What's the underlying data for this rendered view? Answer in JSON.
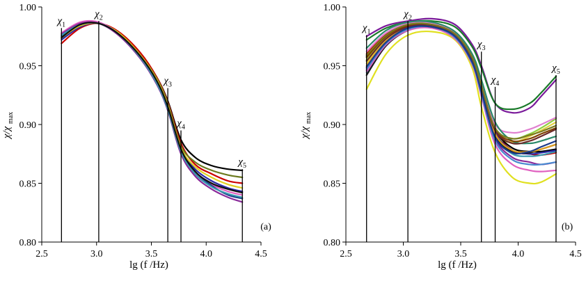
{
  "chart_data": [
    {
      "type": "line",
      "panel": "(a)",
      "xlabel": "lg (f /Hz)",
      "ylabel": "χ/χmax",
      "xlim": [
        2.5,
        4.5
      ],
      "ylim": [
        0.8,
        1.0
      ],
      "xticks": [
        "2.5",
        "3.0",
        "3.5",
        "4.0",
        "4.5"
      ],
      "yticks": [
        "0.80",
        "0.85",
        "0.90",
        "0.95",
        "1.00"
      ],
      "markers": [
        {
          "label": "χ",
          "sub": "1",
          "x": 2.68,
          "top": 0.982
        },
        {
          "label": "χ",
          "sub": "2",
          "x": 3.02,
          "top": 0.988
        },
        {
          "label": "χ",
          "sub": "3",
          "x": 3.65,
          "top": 0.931
        },
        {
          "label": "χ",
          "sub": "4",
          "x": 3.77,
          "top": 0.895
        },
        {
          "label": "χ",
          "sub": "5",
          "x": 4.33,
          "top": 0.862
        }
      ],
      "series": [
        {
          "name": "s1",
          "color": "#000000",
          "x": [
            2.68,
            2.85,
            3.02,
            3.2,
            3.4,
            3.55,
            3.65,
            3.77,
            3.9,
            4.05,
            4.2,
            4.33
          ],
          "values": [
            0.976,
            0.985,
            0.986,
            0.978,
            0.96,
            0.94,
            0.92,
            0.887,
            0.872,
            0.865,
            0.862,
            0.861
          ]
        },
        {
          "name": "s2",
          "color": "#cc0000",
          "x": [
            2.68,
            2.85,
            3.02,
            3.2,
            3.4,
            3.55,
            3.65,
            3.77,
            3.9,
            4.05,
            4.2,
            4.33
          ],
          "values": [
            0.969,
            0.982,
            0.986,
            0.979,
            0.961,
            0.94,
            0.919,
            0.884,
            0.866,
            0.858,
            0.852,
            0.85
          ]
        },
        {
          "name": "s3",
          "color": "#6b7a1e",
          "x": [
            2.68,
            2.85,
            3.02,
            3.2,
            3.4,
            3.55,
            3.65,
            3.77,
            3.9,
            4.05,
            4.2,
            4.33
          ],
          "values": [
            0.973,
            0.984,
            0.986,
            0.978,
            0.959,
            0.939,
            0.918,
            0.882,
            0.868,
            0.861,
            0.857,
            0.855
          ]
        },
        {
          "name": "s4",
          "color": "#2a2aa8",
          "x": [
            2.68,
            2.85,
            3.02,
            3.2,
            3.4,
            3.55,
            3.65,
            3.77,
            3.9,
            4.05,
            4.2,
            4.33
          ],
          "values": [
            0.972,
            0.983,
            0.986,
            0.977,
            0.958,
            0.937,
            0.915,
            0.879,
            0.862,
            0.852,
            0.846,
            0.843
          ]
        },
        {
          "name": "s5",
          "color": "#e0d020",
          "x": [
            2.68,
            2.85,
            3.02,
            3.2,
            3.4,
            3.55,
            3.65,
            3.77,
            3.9,
            4.05,
            4.2,
            4.33
          ],
          "values": [
            0.974,
            0.984,
            0.986,
            0.978,
            0.959,
            0.938,
            0.916,
            0.88,
            0.864,
            0.855,
            0.849,
            0.846
          ]
        },
        {
          "name": "s6",
          "color": "#e060c0",
          "x": [
            2.68,
            2.85,
            3.02,
            3.2,
            3.4,
            3.55,
            3.65,
            3.77,
            3.9,
            4.05,
            4.2,
            4.33
          ],
          "values": [
            0.978,
            0.987,
            0.987,
            0.977,
            0.957,
            0.936,
            0.914,
            0.877,
            0.859,
            0.849,
            0.843,
            0.84
          ]
        },
        {
          "name": "s7",
          "color": "#1a3a8a",
          "x": [
            2.68,
            2.85,
            3.02,
            3.2,
            3.4,
            3.55,
            3.65,
            3.77,
            3.9,
            4.05,
            4.2,
            4.33
          ],
          "values": [
            0.975,
            0.985,
            0.986,
            0.977,
            0.958,
            0.936,
            0.914,
            0.878,
            0.86,
            0.848,
            0.84,
            0.837
          ]
        },
        {
          "name": "s8",
          "color": "#8a2a9a",
          "x": [
            2.68,
            2.85,
            3.02,
            3.2,
            3.4,
            3.55,
            3.65,
            3.77,
            3.9,
            4.05,
            4.2,
            4.33
          ],
          "values": [
            0.977,
            0.986,
            0.986,
            0.976,
            0.956,
            0.934,
            0.912,
            0.875,
            0.856,
            0.845,
            0.838,
            0.834
          ]
        },
        {
          "name": "s9",
          "color": "#3a9ab0",
          "x": [
            2.68,
            2.85,
            3.02,
            3.2,
            3.4,
            3.55,
            3.65,
            3.77,
            3.9,
            4.05,
            4.2,
            4.33
          ],
          "values": [
            0.976,
            0.985,
            0.986,
            0.977,
            0.957,
            0.935,
            0.913,
            0.877,
            0.858,
            0.847,
            0.841,
            0.838
          ]
        },
        {
          "name": "s10",
          "color": "#101010",
          "x": [
            2.68,
            2.85,
            3.02,
            3.2,
            3.4,
            3.55,
            3.65,
            3.77,
            3.9,
            4.05,
            4.2,
            4.33
          ],
          "values": [
            0.974,
            0.985,
            0.986,
            0.977,
            0.958,
            0.937,
            0.915,
            0.879,
            0.86,
            0.85,
            0.845,
            0.842
          ]
        }
      ]
    },
    {
      "type": "line",
      "panel": "(b)",
      "xlabel": "lg (f /Hz)",
      "ylabel": "χ/χmax",
      "xlim": [
        2.5,
        4.5
      ],
      "ylim": [
        0.8,
        1.0
      ],
      "xticks": [
        "2.5",
        "3.0",
        "3.5",
        "4.0",
        "4.5"
      ],
      "yticks": [
        "0.80",
        "0.85",
        "0.90",
        "0.95",
        "1.00"
      ],
      "markers": [
        {
          "label": "χ",
          "sub": "1",
          "x": 2.68,
          "top": 0.976
        },
        {
          "label": "χ",
          "sub": "2",
          "x": 3.04,
          "top": 0.988
        },
        {
          "label": "χ",
          "sub": "3",
          "x": 3.68,
          "top": 0.962
        },
        {
          "label": "χ",
          "sub": "4",
          "x": 3.8,
          "top": 0.932
        },
        {
          "label": "χ",
          "sub": "5",
          "x": 4.33,
          "top": 0.942
        }
      ],
      "series": [
        {
          "name": "s1",
          "color": "#7a1a9a",
          "x": [
            2.68,
            2.85,
            3.04,
            3.25,
            3.45,
            3.6,
            3.68,
            3.8,
            3.95,
            4.1,
            4.2,
            4.33
          ],
          "values": [
            0.975,
            0.984,
            0.988,
            0.99,
            0.985,
            0.968,
            0.95,
            0.918,
            0.91,
            0.914,
            0.924,
            0.938
          ]
        },
        {
          "name": "s2",
          "color": "#1a7a2a",
          "x": [
            2.68,
            2.85,
            3.04,
            3.25,
            3.45,
            3.6,
            3.68,
            3.8,
            3.95,
            4.1,
            4.2,
            4.33
          ],
          "values": [
            0.972,
            0.982,
            0.987,
            0.988,
            0.983,
            0.966,
            0.948,
            0.918,
            0.913,
            0.918,
            0.927,
            0.941
          ]
        },
        {
          "name": "s3",
          "color": "#e0e020",
          "x": [
            2.68,
            2.85,
            3.04,
            3.25,
            3.45,
            3.6,
            3.68,
            3.8,
            3.95,
            4.1,
            4.2,
            4.33
          ],
          "values": [
            0.93,
            0.96,
            0.976,
            0.979,
            0.972,
            0.948,
            0.915,
            0.876,
            0.855,
            0.85,
            0.851,
            0.858
          ]
        },
        {
          "name": "s4",
          "color": "#cc0000",
          "x": [
            2.68,
            2.85,
            3.04,
            3.25,
            3.45,
            3.6,
            3.68,
            3.8,
            3.95,
            4.1,
            4.2,
            4.33
          ],
          "values": [
            0.96,
            0.977,
            0.985,
            0.986,
            0.978,
            0.958,
            0.935,
            0.895,
            0.878,
            0.875,
            0.874,
            0.876
          ]
        },
        {
          "name": "s5",
          "color": "#e0d040",
          "x": [
            2.68,
            2.85,
            3.04,
            3.25,
            3.45,
            3.6,
            3.68,
            3.8,
            3.95,
            4.1,
            4.2,
            4.33
          ],
          "values": [
            0.952,
            0.972,
            0.982,
            0.984,
            0.976,
            0.955,
            0.93,
            0.892,
            0.885,
            0.89,
            0.895,
            0.902
          ]
        },
        {
          "name": "s6",
          "color": "#000000",
          "x": [
            2.68,
            2.85,
            3.04,
            3.25,
            3.45,
            3.6,
            3.68,
            3.8,
            3.95,
            4.1,
            4.2,
            4.33
          ],
          "values": [
            0.958,
            0.976,
            0.985,
            0.985,
            0.977,
            0.957,
            0.934,
            0.896,
            0.88,
            0.877,
            0.877,
            0.879
          ]
        },
        {
          "name": "s7",
          "color": "#3a9ab0",
          "x": [
            2.68,
            2.85,
            3.04,
            3.25,
            3.45,
            3.6,
            3.68,
            3.8,
            3.95,
            4.1,
            4.2,
            4.33
          ],
          "values": [
            0.944,
            0.968,
            0.981,
            0.983,
            0.975,
            0.953,
            0.928,
            0.89,
            0.875,
            0.873,
            0.874,
            0.877
          ]
        },
        {
          "name": "s8",
          "color": "#90d040",
          "x": [
            2.68,
            2.85,
            3.04,
            3.25,
            3.45,
            3.6,
            3.68,
            3.8,
            3.95,
            4.1,
            4.2,
            4.33
          ],
          "values": [
            0.955,
            0.974,
            0.984,
            0.985,
            0.977,
            0.956,
            0.932,
            0.897,
            0.888,
            0.892,
            0.897,
            0.905
          ]
        },
        {
          "name": "s9",
          "color": "#e080d0",
          "x": [
            2.68,
            2.85,
            3.04,
            3.25,
            3.45,
            3.6,
            3.68,
            3.8,
            3.95,
            4.1,
            4.2,
            4.33
          ],
          "values": [
            0.962,
            0.978,
            0.986,
            0.986,
            0.978,
            0.958,
            0.935,
            0.9,
            0.893,
            0.896,
            0.9,
            0.906
          ]
        },
        {
          "name": "s10",
          "color": "#2a2aa8",
          "x": [
            2.68,
            2.85,
            3.04,
            3.25,
            3.45,
            3.6,
            3.68,
            3.8,
            3.95,
            4.1,
            4.2,
            4.33
          ],
          "values": [
            0.948,
            0.97,
            0.982,
            0.984,
            0.976,
            0.955,
            0.93,
            0.893,
            0.878,
            0.875,
            0.876,
            0.878
          ]
        },
        {
          "name": "s11",
          "color": "#8a2a9a",
          "x": [
            2.68,
            2.85,
            3.04,
            3.25,
            3.45,
            3.6,
            3.68,
            3.8,
            3.95,
            4.1,
            4.2,
            4.33
          ],
          "values": [
            0.946,
            0.969,
            0.981,
            0.983,
            0.975,
            0.953,
            0.927,
            0.888,
            0.872,
            0.868,
            0.866,
            0.868
          ]
        },
        {
          "name": "s12",
          "color": "#1a1a1a",
          "x": [
            2.68,
            2.85,
            3.04,
            3.25,
            3.45,
            3.6,
            3.68,
            3.8,
            3.95,
            4.1,
            4.2,
            4.33
          ],
          "values": [
            0.942,
            0.967,
            0.98,
            0.983,
            0.975,
            0.954,
            0.929,
            0.891,
            0.877,
            0.876,
            0.879,
            0.883
          ]
        },
        {
          "name": "s13",
          "color": "#2a8a6a",
          "x": [
            2.68,
            2.85,
            3.04,
            3.25,
            3.45,
            3.6,
            3.68,
            3.8,
            3.95,
            4.1,
            4.2,
            4.33
          ],
          "values": [
            0.965,
            0.98,
            0.987,
            0.987,
            0.979,
            0.96,
            0.938,
            0.902,
            0.886,
            0.884,
            0.886,
            0.89
          ]
        },
        {
          "name": "s14",
          "color": "#804000",
          "x": [
            2.68,
            2.85,
            3.04,
            3.25,
            3.45,
            3.6,
            3.68,
            3.8,
            3.95,
            4.1,
            4.2,
            4.33
          ],
          "values": [
            0.957,
            0.975,
            0.984,
            0.985,
            0.977,
            0.957,
            0.933,
            0.896,
            0.886,
            0.888,
            0.892,
            0.897
          ]
        },
        {
          "name": "s15",
          "color": "#e0a020",
          "x": [
            2.68,
            2.85,
            3.04,
            3.25,
            3.45,
            3.6,
            3.68,
            3.8,
            3.95,
            4.1,
            4.2,
            4.33
          ],
          "values": [
            0.95,
            0.971,
            0.982,
            0.984,
            0.976,
            0.955,
            0.93,
            0.892,
            0.878,
            0.877,
            0.879,
            0.883
          ]
        },
        {
          "name": "s16",
          "color": "#6a2a2a",
          "x": [
            2.68,
            2.85,
            3.04,
            3.25,
            3.45,
            3.6,
            3.68,
            3.8,
            3.95,
            4.1,
            4.2,
            4.33
          ],
          "values": [
            0.954,
            0.973,
            0.983,
            0.984,
            0.976,
            0.955,
            0.931,
            0.895,
            0.884,
            0.886,
            0.89,
            0.896
          ]
        },
        {
          "name": "s17",
          "color": "#e060c0",
          "x": [
            2.68,
            2.85,
            3.04,
            3.25,
            3.45,
            3.6,
            3.68,
            3.8,
            3.95,
            4.1,
            4.2,
            4.33
          ],
          "values": [
            0.945,
            0.968,
            0.98,
            0.982,
            0.973,
            0.951,
            0.924,
            0.883,
            0.866,
            0.861,
            0.86,
            0.861
          ]
        },
        {
          "name": "s18",
          "color": "#4a8ad0",
          "x": [
            2.68,
            2.85,
            3.04,
            3.25,
            3.45,
            3.6,
            3.68,
            3.8,
            3.95,
            4.1,
            4.2,
            4.33
          ],
          "values": [
            0.947,
            0.969,
            0.981,
            0.983,
            0.974,
            0.952,
            0.926,
            0.886,
            0.87,
            0.866,
            0.866,
            0.868
          ]
        },
        {
          "name": "s19",
          "color": "#1a3a8a",
          "x": [
            2.68,
            2.85,
            3.04,
            3.25,
            3.45,
            3.6,
            3.68,
            3.8,
            3.95,
            4.1,
            4.2,
            4.33
          ],
          "values": [
            0.949,
            0.97,
            0.982,
            0.983,
            0.975,
            0.953,
            0.928,
            0.889,
            0.876,
            0.877,
            0.881,
            0.886
          ]
        },
        {
          "name": "s20",
          "color": "#7a7a20",
          "x": [
            2.68,
            2.85,
            3.04,
            3.25,
            3.45,
            3.6,
            3.68,
            3.8,
            3.95,
            4.1,
            4.2,
            4.33
          ],
          "values": [
            0.959,
            0.976,
            0.985,
            0.985,
            0.977,
            0.957,
            0.933,
            0.897,
            0.888,
            0.891,
            0.894,
            0.899
          ]
        }
      ]
    }
  ]
}
